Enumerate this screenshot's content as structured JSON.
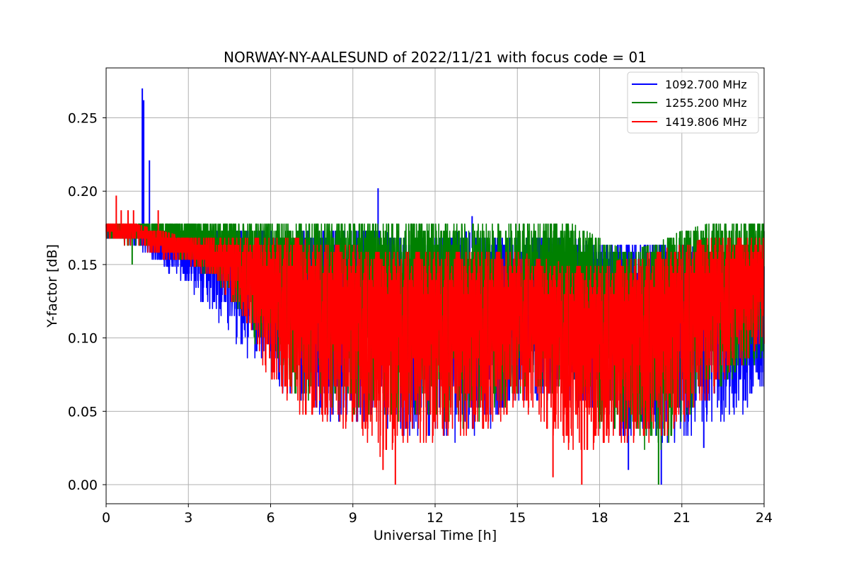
{
  "chart_data": {
    "type": "line",
    "title": "NORWAY-NY-AALESUND of 2022/11/21 with focus code = 01",
    "xlabel": "Universal Time [h]",
    "ylabel": "Y-factor [dB]",
    "xlim": [
      0,
      24
    ],
    "ylim": [
      -0.013,
      0.284
    ],
    "xticks": [
      0,
      3,
      6,
      9,
      12,
      15,
      18,
      21,
      24
    ],
    "xtick_labels": [
      "0",
      "3",
      "6",
      "9",
      "12",
      "15",
      "18",
      "21",
      "24"
    ],
    "yticks": [
      0.0,
      0.05,
      0.1,
      0.15,
      0.2,
      0.25
    ],
    "ytick_labels": [
      "0.00",
      "0.05",
      "0.10",
      "0.15",
      "0.20",
      "0.25"
    ],
    "grid": true,
    "legend_position": "top-right",
    "series": [
      {
        "name": "1092.700 MHz",
        "color": "#0000ff",
        "envelope": {
          "x": [
            0,
            1,
            2,
            3,
            4,
            5,
            6,
            7,
            8,
            9,
            10,
            11,
            12,
            13,
            14,
            15,
            16,
            17,
            18,
            19,
            20,
            21,
            22,
            23,
            24
          ],
          "upper": [
            0.173,
            0.173,
            0.173,
            0.173,
            0.173,
            0.173,
            0.173,
            0.173,
            0.173,
            0.173,
            0.173,
            0.168,
            0.168,
            0.173,
            0.168,
            0.168,
            0.168,
            0.168,
            0.164,
            0.164,
            0.164,
            0.164,
            0.159,
            0.15,
            0.15
          ],
          "lower": [
            0.168,
            0.164,
            0.15,
            0.135,
            0.115,
            0.09,
            0.07,
            0.055,
            0.045,
            0.045,
            0.04,
            0.035,
            0.03,
            0.03,
            0.035,
            0.055,
            0.06,
            0.055,
            0.04,
            0.03,
            0.03,
            0.03,
            0.035,
            0.045,
            0.06
          ]
        },
        "spikes": [
          [
            1.32,
            0.27
          ],
          [
            1.37,
            0.262
          ],
          [
            1.58,
            0.221
          ],
          [
            9.92,
            0.202
          ],
          [
            13.35,
            0.183
          ],
          [
            20.25,
            0.0
          ],
          [
            19.05,
            0.01
          ],
          [
            21.8,
            0.025
          ]
        ]
      },
      {
        "name": "1255.200 MHz",
        "color": "#008000",
        "envelope": {
          "x": [
            0,
            1,
            2,
            3,
            4,
            5,
            6,
            7,
            8,
            9,
            10,
            11,
            12,
            13,
            14,
            15,
            16,
            17,
            18,
            19,
            20,
            21,
            22,
            23,
            24
          ],
          "upper": [
            0.178,
            0.178,
            0.178,
            0.178,
            0.178,
            0.178,
            0.178,
            0.178,
            0.178,
            0.178,
            0.178,
            0.178,
            0.178,
            0.178,
            0.178,
            0.178,
            0.178,
            0.178,
            0.168,
            0.159,
            0.164,
            0.173,
            0.178,
            0.178,
            0.178
          ],
          "lower": [
            0.168,
            0.164,
            0.16,
            0.15,
            0.14,
            0.11,
            0.08,
            0.06,
            0.05,
            0.045,
            0.04,
            0.04,
            0.04,
            0.04,
            0.045,
            0.06,
            0.065,
            0.06,
            0.04,
            0.035,
            0.02,
            0.04,
            0.06,
            0.075,
            0.085
          ]
        },
        "spikes": [
          [
            20.15,
            0.0
          ],
          [
            0.95,
            0.15
          ]
        ]
      },
      {
        "name": "1419.806 MHz",
        "color": "#ff0000",
        "envelope": {
          "x": [
            0,
            1,
            2,
            3,
            4,
            5,
            6,
            7,
            8,
            9,
            10,
            11,
            12,
            13,
            14,
            15,
            16,
            17,
            18,
            19,
            20,
            21,
            22,
            23,
            24
          ],
          "upper": [
            0.178,
            0.178,
            0.173,
            0.168,
            0.168,
            0.168,
            0.168,
            0.168,
            0.164,
            0.164,
            0.159,
            0.159,
            0.159,
            0.159,
            0.159,
            0.159,
            0.154,
            0.15,
            0.15,
            0.154,
            0.159,
            0.164,
            0.168,
            0.168,
            0.168
          ],
          "lower": [
            0.168,
            0.164,
            0.155,
            0.15,
            0.14,
            0.115,
            0.07,
            0.05,
            0.04,
            0.04,
            0.02,
            0.03,
            0.03,
            0.035,
            0.035,
            0.055,
            0.04,
            0.02,
            0.025,
            0.03,
            0.03,
            0.04,
            0.06,
            0.08,
            0.095
          ]
        },
        "spikes": [
          [
            0.37,
            0.197
          ],
          [
            0.55,
            0.187
          ],
          [
            0.8,
            0.187
          ],
          [
            1.0,
            0.187
          ],
          [
            1.9,
            0.187
          ],
          [
            10.55,
            0.0
          ],
          [
            17.35,
            0.0
          ],
          [
            16.3,
            0.005
          ],
          [
            10.1,
            0.01
          ]
        ]
      }
    ]
  }
}
